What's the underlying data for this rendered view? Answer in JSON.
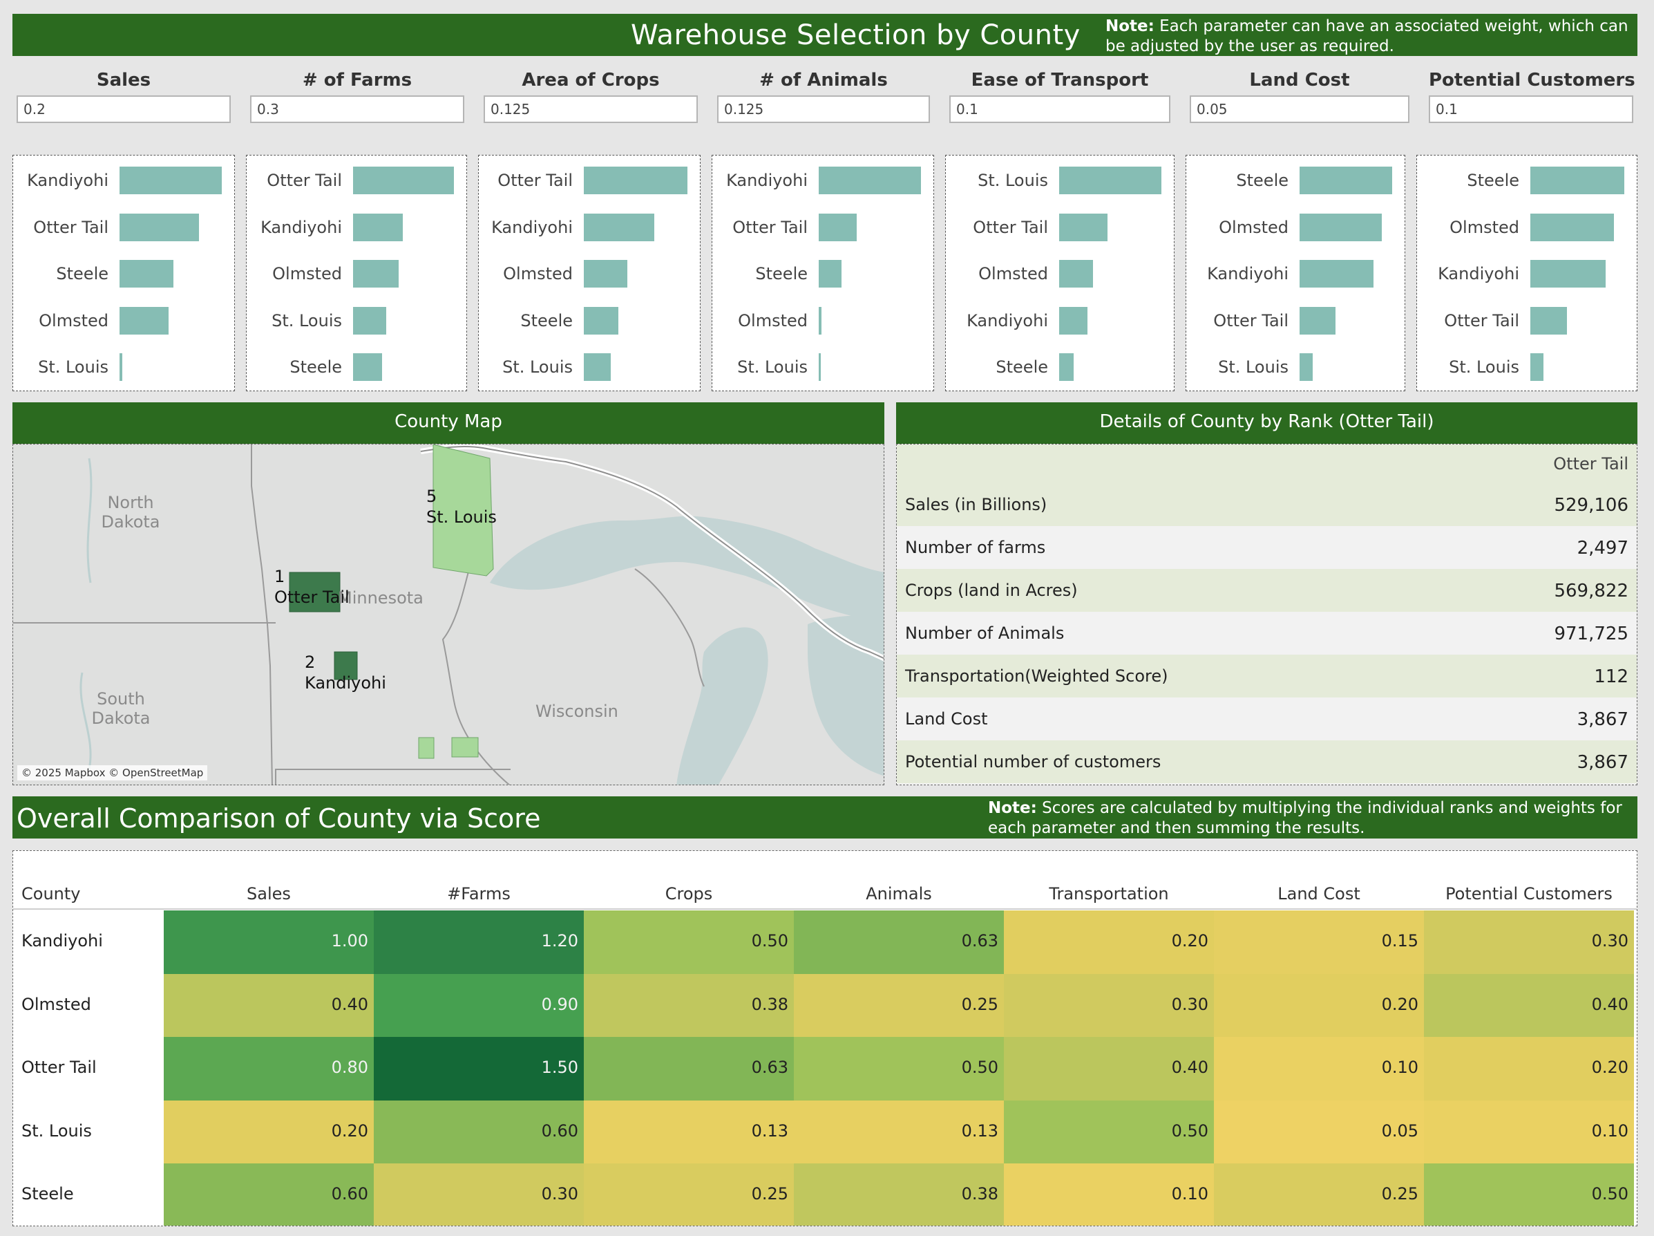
{
  "header": {
    "title": "Warehouse Selection by County",
    "note_bold": "Note:",
    "note_text": " Each parameter can have an associated weight, which can be adjusted by the user as required."
  },
  "parameters": [
    {
      "label": "Sales",
      "value": "0.2"
    },
    {
      "label": "# of Farms",
      "value": "0.3"
    },
    {
      "label": "Area of Crops",
      "value": "0.125"
    },
    {
      "label": "# of Animals",
      "value": "0.125"
    },
    {
      "label": "Ease of Transport",
      "value": "0.1"
    },
    {
      "label": "Land Cost",
      "value": "0.05"
    },
    {
      "label": "Potential Customers",
      "value": "0.1"
    }
  ],
  "rank_panels": [
    {
      "items": [
        {
          "county": "Kandiyohi",
          "value": 1.0
        },
        {
          "county": "Otter Tail",
          "value": 0.78
        },
        {
          "county": "Steele",
          "value": 0.53
        },
        {
          "county": "Olmsted",
          "value": 0.48
        },
        {
          "county": "St. Louis",
          "value": 0.03
        }
      ]
    },
    {
      "items": [
        {
          "county": "Otter Tail",
          "value": 1.0
        },
        {
          "county": "Kandiyohi",
          "value": 0.49
        },
        {
          "county": "Olmsted",
          "value": 0.45
        },
        {
          "county": "St. Louis",
          "value": 0.33
        },
        {
          "county": "Steele",
          "value": 0.29
        }
      ]
    },
    {
      "items": [
        {
          "county": "Otter Tail",
          "value": 1.0
        },
        {
          "county": "Kandiyohi",
          "value": 0.68
        },
        {
          "county": "Olmsted",
          "value": 0.42
        },
        {
          "county": "Steele",
          "value": 0.33
        },
        {
          "county": "St. Louis",
          "value": 0.26
        }
      ]
    },
    {
      "items": [
        {
          "county": "Kandiyohi",
          "value": 1.0
        },
        {
          "county": "Otter Tail",
          "value": 0.37
        },
        {
          "county": "Steele",
          "value": 0.22
        },
        {
          "county": "Olmsted",
          "value": 0.03
        },
        {
          "county": "St. Louis",
          "value": 0.01
        }
      ]
    },
    {
      "items": [
        {
          "county": "St. Louis",
          "value": 1.0
        },
        {
          "county": "Otter Tail",
          "value": 0.47
        },
        {
          "county": "Olmsted",
          "value": 0.33
        },
        {
          "county": "Kandiyohi",
          "value": 0.28
        },
        {
          "county": "Steele",
          "value": 0.14
        }
      ]
    },
    {
      "items": [
        {
          "county": "Steele",
          "value": 1.0
        },
        {
          "county": "Olmsted",
          "value": 0.89
        },
        {
          "county": "Kandiyohi",
          "value": 0.8
        },
        {
          "county": "Otter Tail",
          "value": 0.39
        },
        {
          "county": "St. Louis",
          "value": 0.14
        }
      ]
    },
    {
      "items": [
        {
          "county": "Steele",
          "value": 1.0
        },
        {
          "county": "Olmsted",
          "value": 0.89
        },
        {
          "county": "Kandiyohi",
          "value": 0.8
        },
        {
          "county": "Otter Tail",
          "value": 0.39
        },
        {
          "county": "St. Louis",
          "value": 0.14
        }
      ]
    }
  ],
  "map": {
    "header": "County Map",
    "labels": {
      "north_dakota": "North\nDakota",
      "south_dakota": "South\nDakota",
      "minnesota": "Minnesota",
      "wisconsin": "Wisconsin"
    },
    "pins": [
      {
        "rank": "5",
        "name": "St. Louis"
      },
      {
        "rank": "1",
        "name": "Otter Tail"
      },
      {
        "rank": "2",
        "name": "Kandiyohi"
      }
    ],
    "attribution": "© 2025 Mapbox © OpenStreetMap",
    "colors": {
      "dark_county": "#3d7a4c",
      "light_county": "#a7d89a",
      "water": "#c4d4d4",
      "land": "#dfe0df"
    }
  },
  "details": {
    "header": "Details of County by Rank (Otter Tail)",
    "column": "Otter Tail",
    "rows": [
      {
        "label": "Sales (in Billions)",
        "value": "529,106"
      },
      {
        "label": "Number of farms",
        "value": "2,497"
      },
      {
        "label": "Crops (land in Acres)",
        "value": "569,822"
      },
      {
        "label": "Number of Animals",
        "value": "971,725"
      },
      {
        "label": "Transportation(Weighted Score)",
        "value": "112"
      },
      {
        "label": "Land Cost",
        "value": "3,867"
      },
      {
        "label": "Potential number of customers",
        "value": "3,867"
      }
    ]
  },
  "score": {
    "title": "Overall Comparison of County via Score",
    "note_bold": "Note:",
    "note_text": " Scores are calculated by multiplying the individual ranks and weights for each parameter and then summing the results.",
    "columns": [
      "County",
      "Sales",
      "#Farms",
      "Crops",
      "Animals",
      "Transportation",
      "Land Cost",
      "Potential Customers"
    ],
    "rows": [
      {
        "county": "Kandiyohi",
        "values": [
          "1.00",
          "1.20",
          "0.50",
          "0.63",
          "0.20",
          "0.15",
          "0.30"
        ]
      },
      {
        "county": "Olmsted",
        "values": [
          "0.40",
          "0.90",
          "0.38",
          "0.25",
          "0.30",
          "0.20",
          "0.40"
        ]
      },
      {
        "county": "Otter Tail",
        "values": [
          "0.80",
          "1.50",
          "0.63",
          "0.50",
          "0.40",
          "0.10",
          "0.20"
        ]
      },
      {
        "county": "St. Louis",
        "values": [
          "0.20",
          "0.60",
          "0.13",
          "0.13",
          "0.50",
          "0.05",
          "0.10"
        ]
      },
      {
        "county": "Steele",
        "values": [
          "0.60",
          "0.30",
          "0.25",
          "0.38",
          "0.10",
          "0.25",
          "0.50"
        ]
      }
    ]
  }
}
